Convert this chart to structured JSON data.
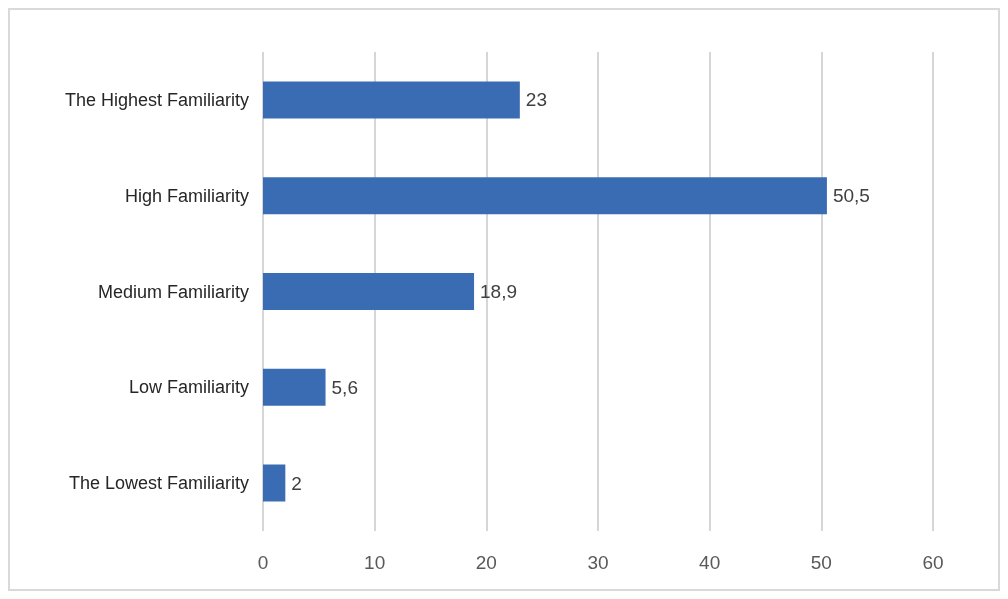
{
  "chart_data": {
    "type": "bar",
    "orientation": "horizontal",
    "categories": [
      "The Highest Familiarity",
      "High Familiarity",
      "Medium Familiarity",
      "Low Familiarity",
      "The Lowest Familiarity"
    ],
    "values": [
      23,
      50.5,
      18.9,
      5.6,
      2
    ],
    "color": "#3a6cb4",
    "value_labels": [
      "23",
      "50,5",
      "18,9",
      "5,6",
      "2"
    ],
    "xlim": [
      0,
      60
    ],
    "xticks": [
      0,
      10,
      20,
      30,
      40,
      50,
      60
    ],
    "grid": "x"
  }
}
